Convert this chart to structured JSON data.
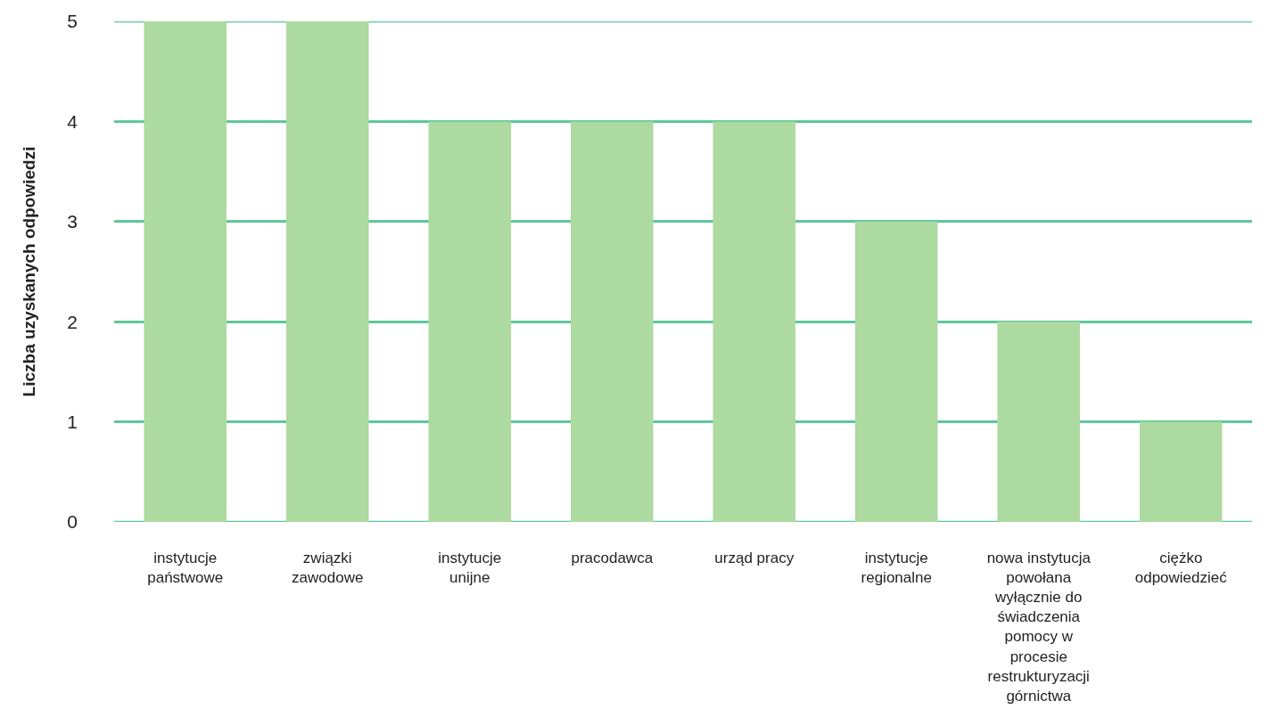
{
  "chart_data": {
    "type": "bar",
    "ylabel": "Liczba uzyskanych odpowiedzi",
    "categories": [
      "instytucje państwowe",
      "związki zawodowe",
      "instytucje unijne",
      "pracodawca",
      "urząd pracy",
      "instytucje regionalne",
      "nowa instytucja powołana wyłącznie do świadczenia pomocy w procesie restrukturyzacji górnictwa",
      "ciężko odpowiedzieć"
    ],
    "values": [
      5,
      5,
      4,
      4,
      4,
      3,
      2,
      1
    ],
    "color": "#acdaa0",
    "ylim": [
      0,
      5
    ],
    "yticks": [
      0,
      1,
      2,
      3,
      4,
      5
    ],
    "grid": "y"
  }
}
